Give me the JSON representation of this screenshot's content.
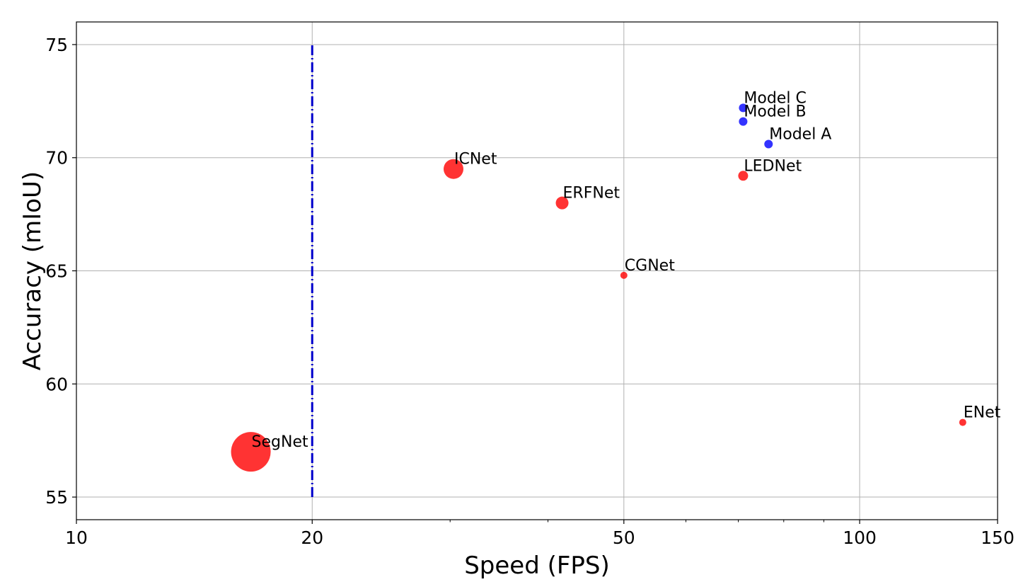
{
  "chart_data": {
    "type": "scatter",
    "title": "",
    "xlabel": "Speed (FPS)",
    "ylabel": "Accuracy (mIoU)",
    "xscale": "log",
    "xlim": [
      10,
      150
    ],
    "ylim": [
      54,
      76
    ],
    "xticks": [
      10,
      20,
      50,
      100,
      150
    ],
    "yticks": [
      55,
      60,
      65,
      70,
      75
    ],
    "grid": true,
    "reference_line": {
      "x": 20,
      "y_range": [
        55,
        75
      ],
      "color": "#0000cc",
      "style": "dashdot"
    },
    "points": [
      {
        "name": "SegNet",
        "x": 16.7,
        "y": 57.0,
        "size": 28,
        "color": "#ff0000"
      },
      {
        "name": "ICNet",
        "x": 30.3,
        "y": 69.5,
        "size": 14,
        "color": "#ff0000"
      },
      {
        "name": "ERFNet",
        "x": 41.7,
        "y": 68.0,
        "size": 9,
        "color": "#ff0000"
      },
      {
        "name": "CGNet",
        "x": 50.0,
        "y": 64.8,
        "size": 5,
        "color": "#ff0000"
      },
      {
        "name": "LEDNet",
        "x": 71.0,
        "y": 69.2,
        "size": 7,
        "color": "#ff0000"
      },
      {
        "name": "ENet",
        "x": 135.4,
        "y": 58.3,
        "size": 5,
        "color": "#ff0000"
      },
      {
        "name": "Model A",
        "x": 76.5,
        "y": 70.6,
        "size": 6,
        "color": "#0000ff"
      },
      {
        "name": "Model B",
        "x": 71.0,
        "y": 71.6,
        "size": 6,
        "color": "#0000ff"
      },
      {
        "name": "Model C",
        "x": 71.0,
        "y": 72.2,
        "size": 6,
        "color": "#0000ff"
      }
    ]
  }
}
